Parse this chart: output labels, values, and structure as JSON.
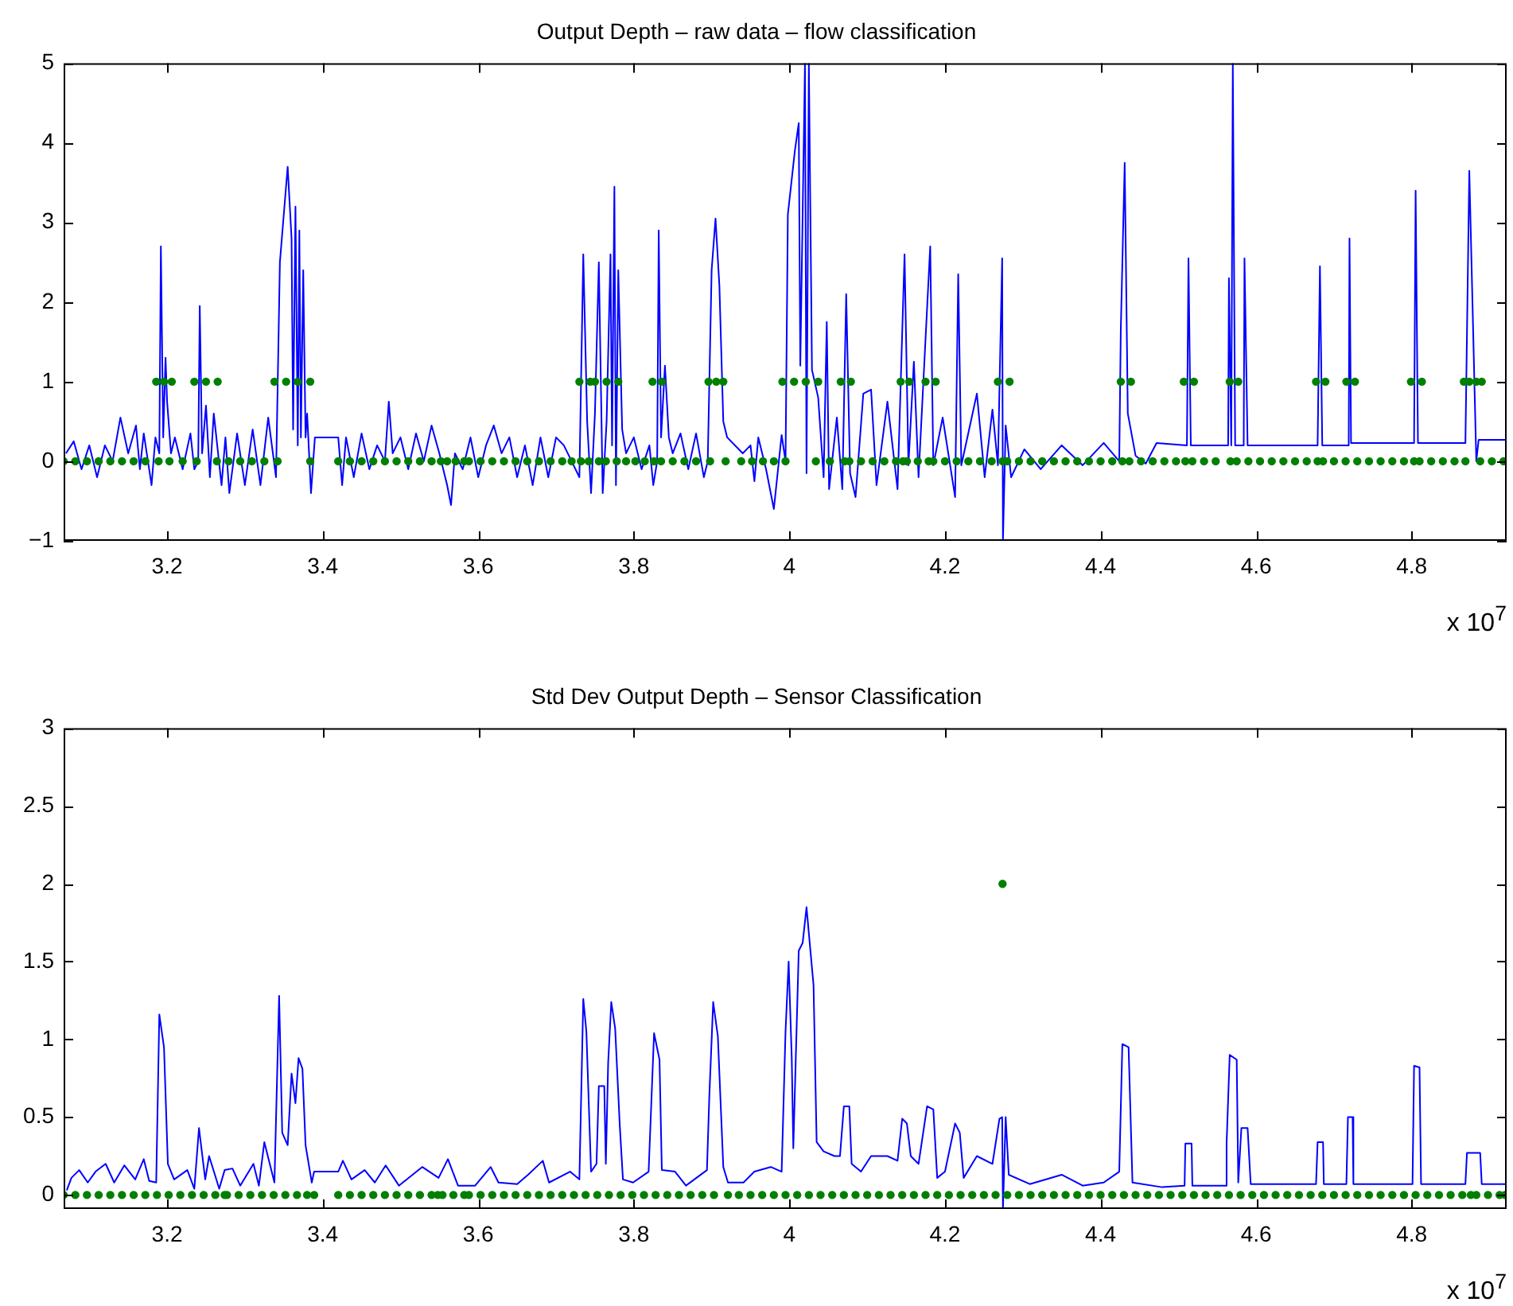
{
  "chart_data": [
    {
      "type": "line",
      "title": "Output Depth – raw data – flow classification",
      "annotations": [
        "x 10$^{7}$"
      ],
      "xlim": [
        3.067,
        4.922
      ],
      "xticks": [
        3.2,
        3.4,
        3.6,
        3.8,
        4,
        4.2,
        4.4,
        4.6,
        4.8
      ],
      "ylim": [
        -1,
        5
      ],
      "yticks": [
        {
          "value": -1,
          "label": "−1"
        },
        0,
        1,
        2,
        3,
        4,
        5
      ],
      "series": [
        {
          "type": "line",
          "color": "#0000ff",
          "marker": "none",
          "x": [
            3.07,
            3.08,
            3.09,
            3.1,
            3.11,
            3.12,
            3.13,
            3.14,
            3.15,
            3.16,
            3.165,
            3.17,
            3.18,
            3.185,
            3.19,
            3.192,
            3.195,
            3.198,
            3.2,
            3.205,
            3.21,
            3.22,
            3.23,
            3.235,
            3.24,
            3.242,
            3.245,
            3.25,
            3.255,
            3.26,
            3.27,
            3.275,
            3.28,
            3.29,
            3.3,
            3.31,
            3.32,
            3.33,
            3.34,
            3.345,
            3.35,
            3.355,
            3.36,
            3.362,
            3.365,
            3.368,
            3.37,
            3.372,
            3.375,
            3.378,
            3.38,
            3.385,
            3.39,
            3.42,
            3.425,
            3.43,
            3.44,
            3.45,
            3.46,
            3.47,
            3.48,
            3.485,
            3.49,
            3.5,
            3.51,
            3.52,
            3.53,
            3.54,
            3.55,
            3.56,
            3.565,
            3.57,
            3.58,
            3.59,
            3.6,
            3.61,
            3.62,
            3.63,
            3.64,
            3.65,
            3.66,
            3.67,
            3.68,
            3.69,
            3.7,
            3.71,
            3.72,
            3.73,
            3.735,
            3.74,
            3.745,
            3.75,
            3.755,
            3.76,
            3.765,
            3.77,
            3.772,
            3.775,
            3.777,
            3.78,
            3.785,
            3.79,
            3.8,
            3.81,
            3.82,
            3.825,
            3.83,
            3.832,
            3.835,
            3.84,
            3.845,
            3.85,
            3.86,
            3.87,
            3.88,
            3.89,
            3.895,
            3.9,
            3.905,
            3.91,
            3.915,
            3.92,
            3.94,
            3.95,
            3.955,
            3.96,
            3.97,
            3.98,
            3.99,
            3.995,
            3.998,
            4.007,
            4.012,
            4.014,
            4.02,
            4.022,
            4.025,
            4.029,
            4.037,
            4.044,
            4.048,
            4.051,
            4.061,
            4.068,
            4.073,
            4.078,
            4.085,
            4.095,
            4.105,
            4.112,
            4.126,
            4.139,
            4.148,
            4.153,
            4.16,
            4.166,
            4.181,
            4.185,
            4.197,
            4.213,
            4.217,
            4.221,
            4.241,
            4.251,
            4.261,
            4.268,
            4.2735,
            4.2745,
            4.278,
            4.285,
            4.302,
            4.323,
            4.35,
            4.377,
            4.404,
            4.424,
            4.426,
            4.431,
            4.435,
            4.445,
            4.458,
            4.472,
            4.511,
            4.513,
            4.516,
            4.564,
            4.565,
            4.568,
            4.57,
            4.573,
            4.584,
            4.585,
            4.589,
            4.679,
            4.682,
            4.685,
            4.719,
            4.72,
            4.722,
            4.803,
            4.805,
            4.808,
            4.869,
            4.874,
            4.883,
            4.886,
            4.922
          ],
          "values": [
            0.1,
            0.25,
            -0.1,
            0.2,
            -0.2,
            0.2,
            0,
            0.55,
            0.1,
            0.45,
            -0.1,
            0.35,
            -0.3,
            0.3,
            0.1,
            2.7,
            0.3,
            1.3,
            0.75,
            0.1,
            0.3,
            -0.1,
            0.35,
            -0.1,
            0,
            1.95,
            0.1,
            0.7,
            -0.2,
            0.6,
            -0.3,
            0.3,
            -0.4,
            0.35,
            -0.3,
            0.4,
            -0.3,
            0.55,
            -0.2,
            2.5,
            3.1,
            3.7,
            2.8,
            0.4,
            3.2,
            0.2,
            2.9,
            0.3,
            2.4,
            0.3,
            0.6,
            -0.4,
            0.3,
            0.3,
            -0.3,
            0.3,
            -0.2,
            0.35,
            -0.1,
            0.2,
            0,
            0.75,
            0.1,
            0.3,
            -0.1,
            0.35,
            0,
            0.45,
            0.1,
            -0.3,
            -0.55,
            0.1,
            -0.1,
            0.3,
            -0.2,
            0.2,
            0.45,
            0.1,
            0.3,
            -0.2,
            0.2,
            -0.3,
            0.3,
            -0.2,
            0.3,
            0.2,
            0,
            -0.2,
            2.6,
            0.5,
            -0.4,
            0.6,
            2.5,
            -0.4,
            0.5,
            2.6,
            0.2,
            3.45,
            -0.3,
            2.4,
            0.4,
            0.1,
            0.3,
            -0.1,
            0.2,
            -0.3,
            0,
            2.9,
            0.3,
            1.2,
            0.3,
            0.1,
            0.35,
            -0.1,
            0.35,
            -0.2,
            0,
            2.4,
            3.05,
            2.2,
            0.5,
            0.3,
            0.1,
            0.2,
            -0.25,
            0.3,
            -0.1,
            -0.6,
            0.33,
            0,
            3.1,
            3.9,
            4.25,
            1.2,
            5,
            -0.15,
            5,
            1.15,
            0.8,
            -0.2,
            1.75,
            -0.35,
            0.55,
            -0.35,
            2.1,
            -0.15,
            -0.45,
            0.85,
            0.9,
            -0.3,
            0.75,
            -0.35,
            2.6,
            -0.05,
            1.25,
            -0.2,
            2.7,
            -0.05,
            0.55,
            -0.45,
            2.35,
            -0.05,
            0.85,
            -0.2,
            0.65,
            -0.05,
            2.55,
            -1,
            0.45,
            -0.2,
            0.15,
            -0.1,
            0.2,
            -0.05,
            0.23,
            0,
            1.65,
            3.75,
            0.6,
            0.07,
            -0.03,
            0.23,
            0.2,
            2.55,
            0.2,
            0.2,
            2.3,
            0.2,
            5,
            0.2,
            0.2,
            2.55,
            0.2,
            0.2,
            2.45,
            0.2,
            0.2,
            2.8,
            0.23,
            0.23,
            3.4,
            0.23,
            0.23,
            3.65,
            0,
            0.27,
            0.27
          ]
        },
        {
          "type": "scatter",
          "color": "#008000",
          "marker": "circle",
          "x": [
            3.067,
            3.082,
            3.097,
            3.112,
            3.127,
            3.142,
            3.157,
            3.172,
            3.189,
            3.203,
            3.22,
            3.238,
            3.264,
            3.279,
            3.294,
            3.309,
            3.325,
            3.342,
            3.384,
            3.42,
            3.435,
            3.45,
            3.465,
            3.48,
            3.495,
            3.51,
            3.525,
            3.54,
            3.552,
            3.56,
            3.571,
            3.582,
            3.588,
            3.603,
            3.618,
            3.633,
            3.648,
            3.663,
            3.678,
            3.693,
            3.708,
            3.72,
            3.732,
            3.742,
            3.755,
            3.764,
            3.778,
            3.79,
            3.802,
            3.814,
            3.826,
            3.835,
            3.85,
            3.865,
            3.88,
            3.898,
            3.918,
            3.938,
            3.952,
            3.966,
            3.98,
            3.995,
            4.034,
            4.052,
            4.071,
            4.077,
            4.092,
            4.107,
            4.122,
            4.137,
            4.146,
            4.151,
            4.165,
            4.179,
            4.185,
            4.2,
            4.215,
            4.23,
            4.245,
            4.26,
            4.274,
            4.28,
            4.295,
            4.31,
            4.325,
            4.34,
            4.355,
            4.37,
            4.385,
            4.4,
            4.415,
            4.428,
            4.437,
            4.452,
            4.467,
            4.482,
            4.497,
            4.509,
            4.518,
            4.533,
            4.548,
            4.567,
            4.575,
            4.59,
            4.605,
            4.62,
            4.635,
            4.65,
            4.665,
            4.679,
            4.686,
            4.7,
            4.715,
            4.73,
            4.745,
            4.76,
            4.775,
            4.79,
            4.803,
            4.81,
            4.825,
            4.84,
            4.855,
            4.869,
            4.888,
            4.903,
            4.918,
            3.186,
            3.196,
            3.206,
            3.235,
            3.25,
            3.265,
            3.338,
            3.353,
            3.368,
            3.384,
            3.73,
            3.744,
            3.75,
            3.765,
            3.78,
            3.824,
            3.836,
            3.896,
            3.906,
            3.915,
            3.991,
            4.006,
            4.021,
            4.037,
            4.066,
            4.079,
            4.143,
            4.154,
            4.175,
            4.188,
            4.268,
            4.283,
            4.426,
            4.439,
            4.507,
            4.52,
            4.566,
            4.577,
            4.677,
            4.689,
            4.716,
            4.727,
            4.799,
            4.813,
            4.867,
            4.874,
            4.883,
            4.89
          ],
          "values": [
            0,
            0,
            0,
            0,
            0,
            0,
            0,
            0,
            0,
            0,
            0,
            0,
            0,
            0,
            0,
            0,
            0,
            0,
            0,
            0,
            0,
            0,
            0,
            0,
            0,
            0,
            0,
            0,
            0,
            0,
            0,
            0,
            0,
            0,
            0,
            0,
            0,
            0,
            0,
            0,
            0,
            0,
            0,
            0,
            0,
            0,
            0,
            0,
            0,
            0,
            0,
            0,
            0,
            0,
            0,
            0,
            0,
            0,
            0,
            0,
            0,
            0,
            0,
            0,
            0,
            0,
            0,
            0,
            0,
            0,
            0,
            0,
            0,
            0,
            0,
            0,
            0,
            0,
            0,
            0,
            0,
            0,
            0,
            0,
            0,
            0,
            0,
            0,
            0,
            0,
            0,
            0,
            0,
            0,
            0,
            0,
            0,
            0,
            0,
            0,
            0,
            0,
            0,
            0,
            0,
            0,
            0,
            0,
            0,
            0,
            0,
            0,
            0,
            0,
            0,
            0,
            0,
            0,
            0,
            0,
            0,
            0,
            0,
            0,
            0,
            0,
            0,
            1,
            1,
            1,
            1,
            1,
            1,
            1,
            1,
            1,
            1,
            1,
            1,
            1,
            1,
            1,
            1,
            1,
            1,
            1,
            1,
            1,
            1,
            1,
            1,
            1,
            1,
            1,
            1,
            1,
            1,
            1,
            1,
            1,
            1,
            1,
            1,
            1,
            1,
            1,
            1,
            1,
            1,
            1,
            1,
            1,
            1,
            1,
            1
          ]
        }
      ]
    },
    {
      "type": "line",
      "title": "Std Dev Output Depth – Sensor Classification",
      "annotations": [
        "x 10$^{7}$"
      ],
      "xlim": [
        3.067,
        4.922
      ],
      "xticks": [
        3.2,
        3.4,
        3.6,
        3.8,
        4,
        4.2,
        4.4,
        4.6,
        4.8
      ],
      "ylim": [
        -0.09,
        3
      ],
      "yticks": [
        0,
        0.5,
        1,
        1.5,
        2,
        2.5,
        3
      ],
      "series": [
        {
          "type": "line",
          "color": "#0000ff",
          "marker": "none",
          "x": [
            3.071,
            3.077,
            3.087,
            3.098,
            3.108,
            3.121,
            3.132,
            3.145,
            3.159,
            3.17,
            3.177,
            3.186,
            3.19,
            3.196,
            3.201,
            3.209,
            3.226,
            3.235,
            3.241,
            3.249,
            3.254,
            3.267,
            3.274,
            3.284,
            3.294,
            3.311,
            3.318,
            3.325,
            3.338,
            3.344,
            3.348,
            3.355,
            3.36,
            3.365,
            3.369,
            3.374,
            3.378,
            3.386,
            3.389,
            3.42,
            3.426,
            3.437,
            3.454,
            3.467,
            3.481,
            3.498,
            3.528,
            3.549,
            3.561,
            3.574,
            3.596,
            3.616,
            3.626,
            3.65,
            3.664,
            3.683,
            3.691,
            3.718,
            3.73,
            3.735,
            3.739,
            3.745,
            3.752,
            3.755,
            3.762,
            3.764,
            3.767,
            3.771,
            3.776,
            3.782,
            3.786,
            3.799,
            3.819,
            3.826,
            3.833,
            3.836,
            3.853,
            3.867,
            3.894,
            3.897,
            3.902,
            3.908,
            3.915,
            3.921,
            3.941,
            3.955,
            3.976,
            3.99,
            3.995,
            3.999,
            4.003,
            4.005,
            4.012,
            4.017,
            4.022,
            4.027,
            4.031,
            4.035,
            4.044,
            4.058,
            4.065,
            4.07,
            4.077,
            4.08,
            4.092,
            4.105,
            4.126,
            4.139,
            4.145,
            4.151,
            4.156,
            4.166,
            4.177,
            4.185,
            4.19,
            4.2,
            4.213,
            4.219,
            4.224,
            4.241,
            4.261,
            4.27,
            4.2735,
            4.2745,
            4.278,
            4.282,
            4.309,
            4.35,
            4.377,
            4.404,
            4.424,
            4.428,
            4.436,
            4.441,
            4.479,
            4.508,
            4.509,
            4.517,
            4.518,
            4.56,
            4.562,
            4.566,
            4.575,
            4.577,
            4.581,
            4.589,
            4.593,
            4.677,
            4.679,
            4.686,
            4.687,
            4.716,
            4.718,
            4.724,
            4.725,
            4.801,
            4.803,
            4.81,
            4.812,
            4.869,
            4.871,
            4.888,
            4.89,
            4.922
          ],
          "values": [
            0.03,
            0.11,
            0.16,
            0.08,
            0.15,
            0.2,
            0.08,
            0.19,
            0.1,
            0.23,
            0.09,
            0.08,
            1.16,
            0.95,
            0.2,
            0.1,
            0.16,
            0.04,
            0.43,
            0.1,
            0.25,
            0.04,
            0.16,
            0.17,
            0.06,
            0.2,
            0.06,
            0.34,
            0.08,
            1.28,
            0.4,
            0.32,
            0.78,
            0.59,
            0.88,
            0.81,
            0.32,
            0.08,
            0.15,
            0.15,
            0.22,
            0.1,
            0.16,
            0.08,
            0.19,
            0.06,
            0.18,
            0.11,
            0.23,
            0.06,
            0.06,
            0.18,
            0.08,
            0.07,
            0.13,
            0.22,
            0.08,
            0.15,
            0.1,
            1.26,
            1.05,
            0.15,
            0.2,
            0.7,
            0.7,
            0.2,
            0.85,
            1.24,
            1.07,
            0.44,
            0.1,
            0.08,
            0.15,
            1.04,
            0.87,
            0.16,
            0.15,
            0.06,
            0.16,
            0.63,
            1.24,
            1.02,
            0.18,
            0.08,
            0.08,
            0.15,
            0.18,
            0.15,
            1.05,
            1.5,
            0.88,
            0.3,
            1.57,
            1.62,
            1.85,
            1.57,
            1.35,
            0.34,
            0.28,
            0.25,
            0.25,
            0.57,
            0.57,
            0.2,
            0.15,
            0.25,
            0.25,
            0.22,
            0.49,
            0.46,
            0.25,
            0.2,
            0.57,
            0.55,
            0.11,
            0.15,
            0.46,
            0.4,
            0.11,
            0.25,
            0.2,
            0.49,
            0.5,
            -0.09,
            0.5,
            0.13,
            0.07,
            0.13,
            0.06,
            0.08,
            0.15,
            0.97,
            0.95,
            0.08,
            0.05,
            0.06,
            0.33,
            0.33,
            0.06,
            0.06,
            0.33,
            0.9,
            0.87,
            0.08,
            0.43,
            0.43,
            0.07,
            0.07,
            0.34,
            0.34,
            0.07,
            0.07,
            0.5,
            0.5,
            0.07,
            0.07,
            0.83,
            0.82,
            0.07,
            0.07,
            0.27,
            0.27,
            0.07,
            0.07
          ]
        },
        {
          "type": "scatter",
          "color": "#008000",
          "marker": "circle",
          "x": [
            3.067,
            3.082,
            3.097,
            3.112,
            3.127,
            3.142,
            3.157,
            3.172,
            3.187,
            3.202,
            3.217,
            3.232,
            3.247,
            3.262,
            3.274,
            3.277,
            3.292,
            3.307,
            3.322,
            3.337,
            3.352,
            3.367,
            3.38,
            3.389,
            3.42,
            3.435,
            3.45,
            3.465,
            3.48,
            3.495,
            3.51,
            3.525,
            3.54,
            3.548,
            3.554,
            3.568,
            3.582,
            3.588,
            3.603,
            3.618,
            3.633,
            3.648,
            3.663,
            3.678,
            3.693,
            3.708,
            3.723,
            3.738,
            3.753,
            3.768,
            3.783,
            3.798,
            3.813,
            3.828,
            3.843,
            3.858,
            3.873,
            3.888,
            3.903,
            3.921,
            3.935,
            3.95,
            3.965,
            3.98,
            3.995,
            4.01,
            4.025,
            4.04,
            4.055,
            4.07,
            4.085,
            4.1,
            4.115,
            4.13,
            4.145,
            4.16,
            4.175,
            4.19,
            4.205,
            4.22,
            4.235,
            4.25,
            4.265,
            4.28,
            4.295,
            4.31,
            4.325,
            4.34,
            4.355,
            4.37,
            4.385,
            4.4,
            4.415,
            4.43,
            4.445,
            4.46,
            4.475,
            4.49,
            4.505,
            4.52,
            4.535,
            4.55,
            4.565,
            4.58,
            4.595,
            4.61,
            4.625,
            4.64,
            4.655,
            4.67,
            4.685,
            4.7,
            4.715,
            4.73,
            4.745,
            4.76,
            4.775,
            4.79,
            4.805,
            4.82,
            4.835,
            4.85,
            4.865,
            4.876,
            4.883,
            4.898,
            4.913,
            4.92,
            4.274
          ],
          "values": [
            0,
            0,
            0,
            0,
            0,
            0,
            0,
            0,
            0,
            0,
            0,
            0,
            0,
            0,
            0,
            0,
            0,
            0,
            0,
            0,
            0,
            0,
            0,
            0,
            0,
            0,
            0,
            0,
            0,
            0,
            0,
            0,
            0,
            0,
            0,
            0,
            0,
            0,
            0,
            0,
            0,
            0,
            0,
            0,
            0,
            0,
            0,
            0,
            0,
            0,
            0,
            0,
            0,
            0,
            0,
            0,
            0,
            0,
            0,
            0,
            0,
            0,
            0,
            0,
            0,
            0,
            0,
            0,
            0,
            0,
            0,
            0,
            0,
            0,
            0,
            0,
            0,
            0,
            0,
            0,
            0,
            0,
            0,
            0,
            0,
            0,
            0,
            0,
            0,
            0,
            0,
            0,
            0,
            0,
            0,
            0,
            0,
            0,
            0,
            0,
            0,
            0,
            0,
            0,
            0,
            0,
            0,
            0,
            0,
            0,
            0,
            0,
            0,
            0,
            0,
            0,
            0,
            0,
            0,
            0,
            0,
            0,
            0,
            0,
            0,
            0,
            0,
            0,
            2
          ]
        }
      ]
    }
  ]
}
